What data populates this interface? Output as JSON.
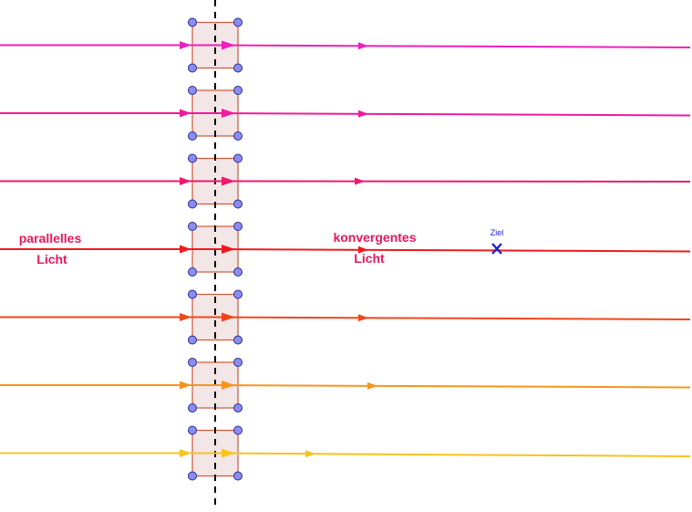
{
  "labels": {
    "left_line1": "parallelles",
    "left_line2": "Licht",
    "right_line1": "konvergentes",
    "right_line2": "Licht",
    "target": "Ziel"
  },
  "colors": {
    "label": "#e8175d",
    "target": "#1e22c8",
    "axis": "#000000",
    "box_fill": "#f3e6e6",
    "box_stroke": "#d0573a",
    "handle_fill": "#8a8cf0",
    "handle_stroke": "#2b2d8a"
  },
  "rays": [
    {
      "color": "#ee1fbd"
    },
    {
      "color": "#ee1a9e"
    },
    {
      "color": "#ee1a6e"
    },
    {
      "color": "#ef1a1e"
    },
    {
      "color": "#f3451a"
    },
    {
      "color": "#f7941d"
    },
    {
      "color": "#f7c31d"
    }
  ]
}
